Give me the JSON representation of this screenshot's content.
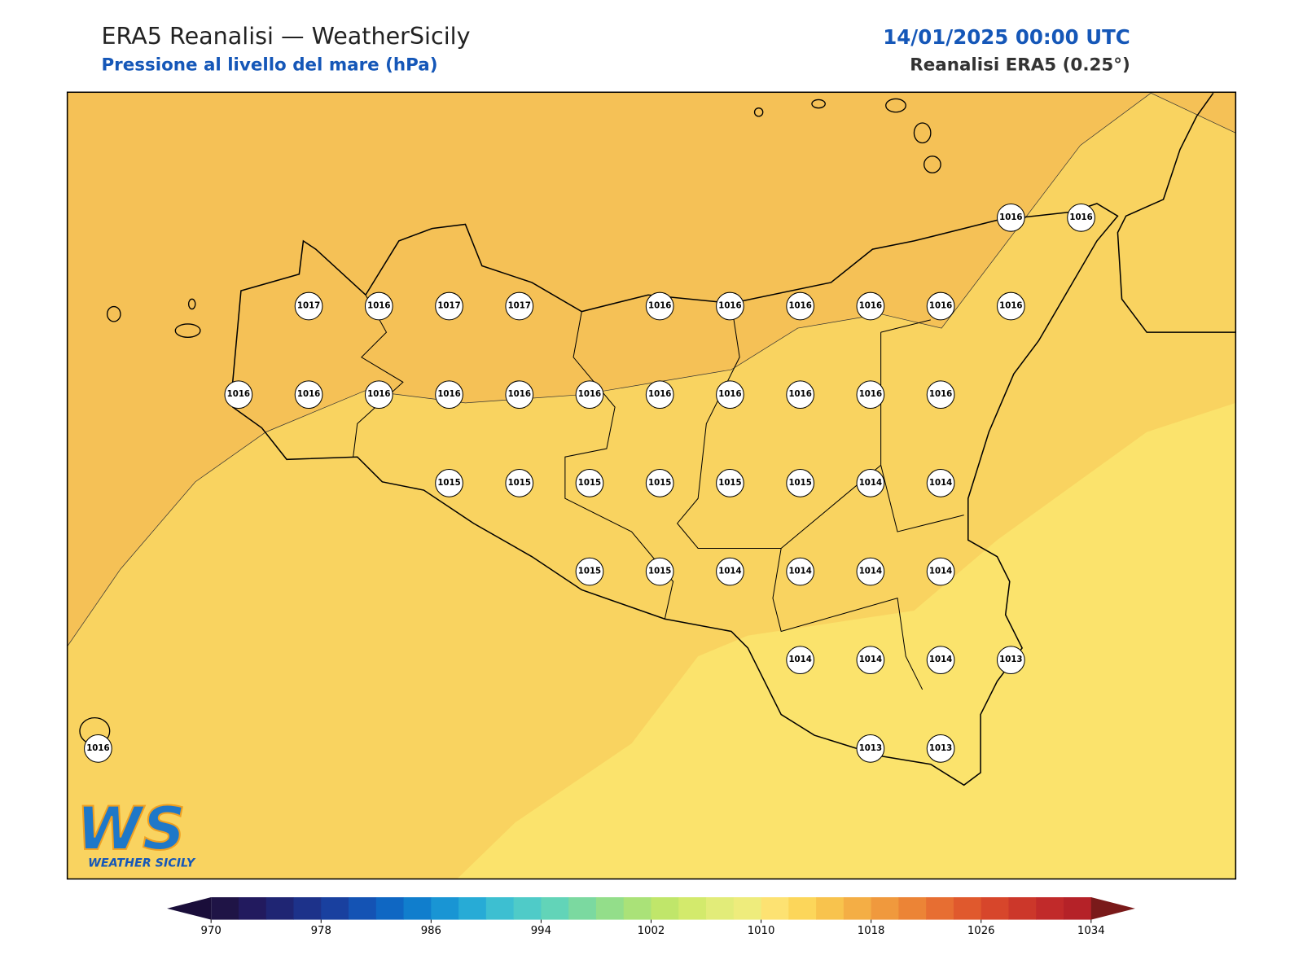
{
  "header": {
    "title": "ERA5 Reanalisi — WeatherSicily",
    "subtitle": "Pressione al livello del mare (hPa)",
    "date": "14/01/2025 00:00 UTC",
    "source": "Reanalisi ERA5 (0.25°)"
  },
  "map": {
    "point_grid": [
      [
        null,
        null,
        null,
        null,
        null,
        null,
        null,
        null,
        null,
        null,
        null,
        null,
        null,
        1016,
        1016
      ],
      [
        null,
        null,
        null,
        1017,
        1016,
        1017,
        1017,
        null,
        1016,
        1016,
        1016,
        1016,
        1016,
        1016,
        null
      ],
      [
        null,
        null,
        1016,
        1016,
        1016,
        1016,
        1016,
        1016,
        1016,
        1016,
        1016,
        1016,
        1016,
        null,
        null
      ],
      [
        null,
        null,
        null,
        null,
        null,
        1015,
        1015,
        1015,
        1015,
        1015,
        1015,
        1014,
        1014,
        null,
        null
      ],
      [
        null,
        null,
        null,
        null,
        null,
        null,
        null,
        1015,
        1015,
        1014,
        1014,
        1014,
        1014,
        null,
        null
      ],
      [
        null,
        null,
        null,
        null,
        null,
        null,
        null,
        null,
        null,
        null,
        1014,
        1014,
        1014,
        1013,
        null
      ],
      [
        1016,
        null,
        null,
        null,
        null,
        null,
        null,
        null,
        null,
        null,
        null,
        1013,
        1013,
        null,
        null
      ]
    ],
    "fill_colors": [
      "#f5c156",
      "#f9d360",
      "#fbe36c"
    ]
  },
  "colorbar": {
    "ticks": [
      970,
      978,
      986,
      994,
      1002,
      1010,
      1018,
      1026,
      1034
    ],
    "colors": [
      "#1f1446",
      "#221a5e",
      "#1f2573",
      "#1d328a",
      "#19409f",
      "#1453b4",
      "#0f67c3",
      "#107ecd",
      "#1995d4",
      "#27abd6",
      "#3dbfd1",
      "#4fcbc8",
      "#62d4b8",
      "#7bd9a0",
      "#93de8a",
      "#aae278",
      "#c0e66a",
      "#d3ea6c",
      "#e2ec79",
      "#eeec7c",
      "#fde272",
      "#fcd65a",
      "#f8c34d",
      "#f4ae45",
      "#f0993d",
      "#ec8436",
      "#e76e32",
      "#e0592d",
      "#d7462b",
      "#cc372a",
      "#c12a2a",
      "#b52228"
    ],
    "under_color": "#1a0e3a",
    "over_color": "#7a1a1a"
  },
  "logo": {
    "mark": "WS",
    "name": "WEATHER SICILY"
  }
}
